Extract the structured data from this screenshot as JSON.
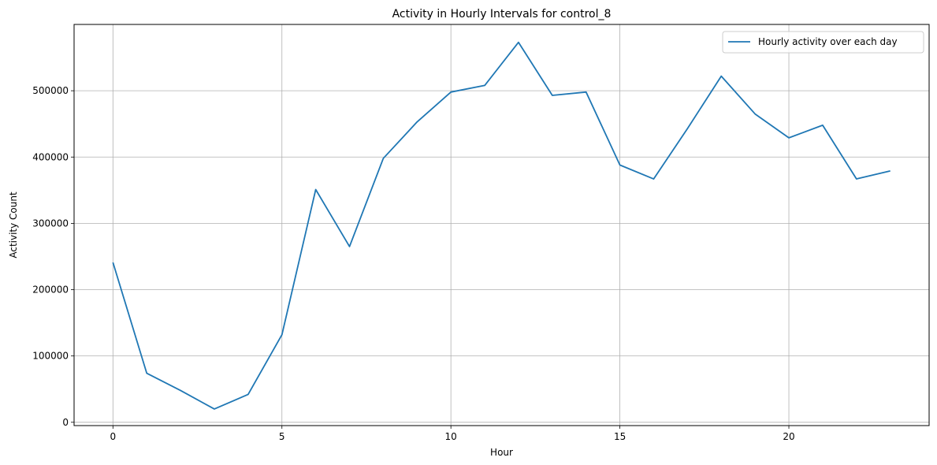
{
  "chart_data": {
    "type": "line",
    "title": "Activity in Hourly Intervals for control_8",
    "xlabel": "Hour",
    "ylabel": "Activity Count",
    "xlim": [
      -1.15,
      24.15
    ],
    "ylim": [
      -5000,
      600000
    ],
    "xticks": [
      0,
      5,
      10,
      15,
      20
    ],
    "yticks": [
      0,
      100000,
      200000,
      300000,
      400000,
      500000
    ],
    "grid": true,
    "legend_position": "top-right",
    "series": [
      {
        "name": "Hourly activity over each day",
        "color": "#1f77b4",
        "x": [
          0,
          1,
          2,
          3,
          4,
          5,
          6,
          7,
          8,
          9,
          10,
          11,
          12,
          13,
          14,
          15,
          16,
          17,
          18,
          19,
          20,
          21,
          22,
          23
        ],
        "values": [
          241000,
          74000,
          48000,
          20000,
          42000,
          132000,
          351000,
          265000,
          398000,
          453000,
          498000,
          508000,
          573000,
          493000,
          498000,
          388000,
          367000,
          443000,
          522000,
          465000,
          429000,
          448000,
          367000,
          379000
        ]
      }
    ]
  }
}
